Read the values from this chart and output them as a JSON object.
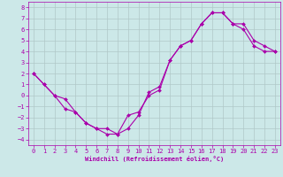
{
  "xlabel": "Windchill (Refroidissement éolien,°C)",
  "bg_color": "#cce8e8",
  "grid_color": "#b0c8c8",
  "line_color": "#aa00aa",
  "xlim": [
    -0.5,
    23.5
  ],
  "ylim": [
    -4.5,
    8.5
  ],
  "xticks": [
    0,
    1,
    2,
    3,
    4,
    5,
    6,
    7,
    8,
    9,
    10,
    11,
    12,
    13,
    14,
    15,
    16,
    17,
    18,
    19,
    20,
    21,
    22,
    23
  ],
  "yticks": [
    -4,
    -3,
    -2,
    -1,
    0,
    1,
    2,
    3,
    4,
    5,
    6,
    7,
    8
  ],
  "line1_x": [
    0,
    1,
    2,
    3,
    4,
    5,
    6,
    7,
    8,
    9,
    10,
    11,
    12,
    13,
    14,
    15,
    16,
    17,
    18,
    19,
    20,
    21,
    22,
    23
  ],
  "line1_y": [
    2,
    1,
    0,
    -0.3,
    -1.5,
    -2.5,
    -3.0,
    -3.5,
    -3.5,
    -3.0,
    -1.8,
    0.3,
    0.8,
    3.2,
    4.5,
    5.0,
    6.5,
    7.5,
    7.5,
    6.5,
    6.5,
    5.0,
    4.5,
    4.0
  ],
  "line2_x": [
    0,
    1,
    2,
    3,
    4,
    5,
    6,
    7,
    8,
    9,
    10,
    11,
    12,
    13,
    14,
    15,
    16,
    17,
    18,
    19,
    20,
    21,
    22,
    23
  ],
  "line2_y": [
    2,
    1,
    0,
    -1.2,
    -1.5,
    -2.5,
    -3.0,
    -3.0,
    -3.5,
    -1.8,
    -1.5,
    0.0,
    0.5,
    3.2,
    4.5,
    5.0,
    6.5,
    7.5,
    7.5,
    6.5,
    6.0,
    4.5,
    4.0,
    4.0
  ],
  "tick_fontsize": 5,
  "label_fontsize": 5,
  "marker_size": 2.0,
  "line_width": 0.8
}
